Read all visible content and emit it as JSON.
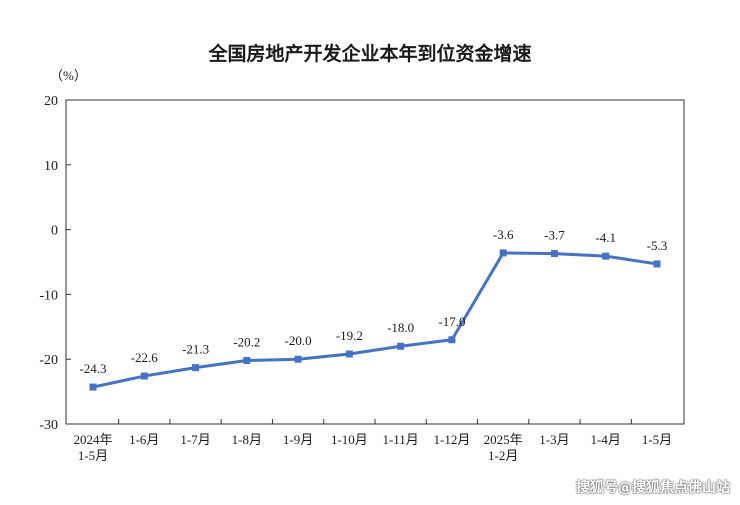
{
  "chart_data": {
    "type": "line",
    "title": "全国房地产开发企业本年到位资金增速",
    "unit": "（%）",
    "ylim": [
      -30,
      20
    ],
    "yticks": [
      20,
      10,
      0,
      -10,
      -20,
      -30
    ],
    "categories": [
      "2024年\n1-5月",
      "1-6月",
      "1-7月",
      "1-8月",
      "1-9月",
      "1-10月",
      "1-11月",
      "1-12月",
      "2025年\n1-2月",
      "1-3月",
      "1-4月",
      "1-5月"
    ],
    "values": [
      -24.3,
      -22.6,
      -21.3,
      -20.2,
      -20.0,
      -19.2,
      -18.0,
      -17.0,
      -3.6,
      -3.7,
      -4.1,
      -5.3
    ],
    "labels": [
      "-24.3",
      "-22.6",
      "-21.3",
      "-20.2",
      "-20.0",
      "-19.2",
      "-18.0",
      "-17.0",
      "-3.6",
      "-3.7",
      "-4.1",
      "-5.3"
    ],
    "line_color": "#4472C4",
    "grid": false
  },
  "watermark": "搜狐号@搜狐焦点佛山站"
}
